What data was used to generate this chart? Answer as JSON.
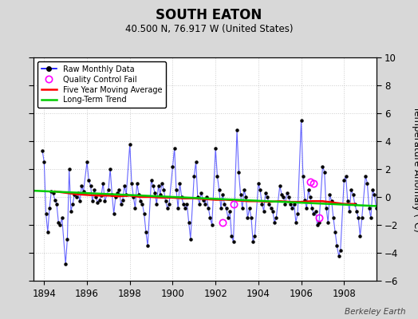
{
  "title": "SOUTH EATON",
  "subtitle": "40.500 N, 76.917 W (United States)",
  "ylabel": "Temperature Anomaly (°C)",
  "watermark": "Berkeley Earth",
  "xlim": [
    1893.5,
    1909.5
  ],
  "ylim": [
    -6,
    10
  ],
  "yticks": [
    -6,
    -4,
    -2,
    0,
    2,
    4,
    6,
    8,
    10
  ],
  "xticks": [
    1894,
    1896,
    1898,
    1900,
    1902,
    1904,
    1906,
    1908
  ],
  "bg_color": "#d8d8d8",
  "plot_bg_color": "#ffffff",
  "raw_line_color": "#6666ff",
  "raw_marker_color": "#000000",
  "moving_avg_color": "#ff0000",
  "trend_color": "#00cc00",
  "qc_fail_color": "#ff00ff",
  "raw_data_x": [
    1893.917,
    1894.0,
    1894.083,
    1894.167,
    1894.25,
    1894.333,
    1894.417,
    1894.5,
    1894.583,
    1894.667,
    1894.75,
    1894.833,
    1895.0,
    1895.083,
    1895.167,
    1895.25,
    1895.333,
    1895.417,
    1895.5,
    1895.583,
    1895.667,
    1895.75,
    1895.833,
    1896.0,
    1896.083,
    1896.167,
    1896.25,
    1896.333,
    1896.417,
    1896.5,
    1896.583,
    1896.667,
    1896.75,
    1896.833,
    1897.0,
    1897.083,
    1897.167,
    1897.25,
    1897.333,
    1897.417,
    1897.5,
    1897.583,
    1897.667,
    1897.75,
    1897.833,
    1898.0,
    1898.083,
    1898.167,
    1898.25,
    1898.333,
    1898.417,
    1898.5,
    1898.583,
    1898.667,
    1898.75,
    1898.833,
    1899.0,
    1899.083,
    1899.167,
    1899.25,
    1899.333,
    1899.417,
    1899.5,
    1899.583,
    1899.667,
    1899.75,
    1899.833,
    1900.0,
    1900.083,
    1900.167,
    1900.25,
    1900.333,
    1900.417,
    1900.5,
    1900.583,
    1900.667,
    1900.75,
    1900.833,
    1901.0,
    1901.083,
    1901.167,
    1901.25,
    1901.333,
    1901.417,
    1901.5,
    1901.583,
    1901.667,
    1901.75,
    1901.833,
    1902.0,
    1902.083,
    1902.167,
    1902.25,
    1902.333,
    1902.417,
    1902.5,
    1902.583,
    1902.667,
    1902.75,
    1902.833,
    1903.0,
    1903.083,
    1903.167,
    1903.25,
    1903.333,
    1903.417,
    1903.5,
    1903.583,
    1903.667,
    1903.75,
    1903.833,
    1904.0,
    1904.083,
    1904.167,
    1904.25,
    1904.333,
    1904.417,
    1904.5,
    1904.583,
    1904.667,
    1904.75,
    1904.833,
    1905.0,
    1905.083,
    1905.167,
    1905.25,
    1905.333,
    1905.417,
    1905.5,
    1905.583,
    1905.667,
    1905.75,
    1905.833,
    1906.0,
    1906.083,
    1906.167,
    1906.25,
    1906.333,
    1906.417,
    1906.5,
    1906.583,
    1906.667,
    1906.75,
    1906.833,
    1907.0,
    1907.083,
    1907.167,
    1907.25,
    1907.333,
    1907.417,
    1907.5,
    1907.583,
    1907.667,
    1907.75,
    1907.833,
    1908.0,
    1908.083,
    1908.167,
    1908.25,
    1908.333,
    1908.417,
    1908.5,
    1908.583,
    1908.667,
    1908.75,
    1908.833,
    1909.0,
    1909.083,
    1909.167,
    1909.25,
    1909.333,
    1909.417,
    1909.5
  ],
  "raw_data_y": [
    3.3,
    2.5,
    -1.2,
    -2.5,
    -0.8,
    0.4,
    0.3,
    -0.2,
    -0.5,
    -1.8,
    -2.0,
    -1.5,
    -4.8,
    -3.0,
    2.0,
    -1.0,
    -0.5,
    0.2,
    0.0,
    0.3,
    -0.3,
    0.8,
    0.4,
    2.5,
    1.2,
    0.8,
    -0.3,
    0.5,
    0.0,
    -0.4,
    -0.2,
    0.1,
    1.0,
    -0.3,
    0.5,
    2.0,
    0.2,
    -1.2,
    0.0,
    0.3,
    0.5,
    -0.5,
    -0.2,
    0.8,
    0.2,
    3.8,
    1.0,
    0.0,
    -0.8,
    1.0,
    0.2,
    -0.3,
    -0.5,
    -1.2,
    -2.5,
    -3.5,
    1.2,
    0.8,
    0.3,
    -0.5,
    0.8,
    0.2,
    1.0,
    0.5,
    -0.3,
    -0.8,
    -0.5,
    2.2,
    3.5,
    0.5,
    -0.8,
    1.0,
    0.0,
    -0.5,
    -0.8,
    -0.5,
    -1.8,
    -3.0,
    1.5,
    2.5,
    0.0,
    -0.5,
    0.3,
    -0.2,
    -0.5,
    0.0,
    -0.8,
    -1.5,
    -2.0,
    3.5,
    1.5,
    0.5,
    -0.8,
    0.2,
    -0.5,
    -0.8,
    -1.5,
    -1.0,
    -2.8,
    -3.2,
    4.8,
    1.8,
    0.2,
    -0.8,
    0.5,
    0.0,
    -1.5,
    -0.8,
    -1.5,
    -3.2,
    -2.8,
    1.0,
    0.5,
    -0.5,
    -1.0,
    0.3,
    0.0,
    -0.5,
    -0.8,
    -1.0,
    -1.8,
    -1.5,
    0.8,
    0.2,
    0.0,
    -0.5,
    0.3,
    0.0,
    -0.5,
    -0.8,
    -0.5,
    -1.8,
    -1.2,
    5.5,
    1.5,
    -0.2,
    -0.8,
    0.5,
    0.0,
    -0.8,
    -1.2,
    -1.0,
    -2.0,
    -1.8,
    2.2,
    1.8,
    -0.8,
    -1.8,
    0.2,
    -0.3,
    -1.5,
    -2.5,
    -3.5,
    -4.2,
    -3.8,
    1.2,
    1.5,
    -0.3,
    -1.0,
    0.5,
    0.2,
    -0.5,
    -1.0,
    -1.5,
    -2.8,
    -1.5,
    1.5,
    1.0,
    -0.8,
    -1.5,
    0.5,
    0.2,
    -0.8
  ],
  "qc_fail_x": [
    1902.333,
    1902.833,
    1906.417,
    1906.583,
    1906.833
  ],
  "qc_fail_y": [
    -1.8,
    -0.5,
    1.1,
    1.0,
    -1.5
  ],
  "moving_avg_x": [
    1894.5,
    1895.0,
    1895.5,
    1896.0,
    1896.5,
    1897.0,
    1897.5,
    1898.0,
    1898.5,
    1899.0,
    1899.5,
    1900.0,
    1900.5,
    1901.0,
    1901.5,
    1902.0,
    1902.5,
    1903.0,
    1903.5,
    1904.0,
    1904.5,
    1905.0,
    1905.5,
    1906.0,
    1906.5,
    1907.0,
    1907.5,
    1908.0,
    1908.5
  ],
  "moving_avg_y": [
    0.4,
    0.3,
    0.2,
    0.15,
    0.1,
    0.1,
    0.05,
    0.1,
    0.0,
    0.0,
    -0.05,
    -0.05,
    -0.1,
    -0.1,
    -0.15,
    -0.2,
    -0.2,
    -0.25,
    -0.3,
    -0.3,
    -0.35,
    -0.3,
    -0.35,
    -0.35,
    -0.3,
    -0.3,
    -0.4,
    -0.5,
    -0.5
  ],
  "trend_x": [
    1893.5,
    1909.5
  ],
  "trend_y": [
    0.45,
    -0.65
  ]
}
